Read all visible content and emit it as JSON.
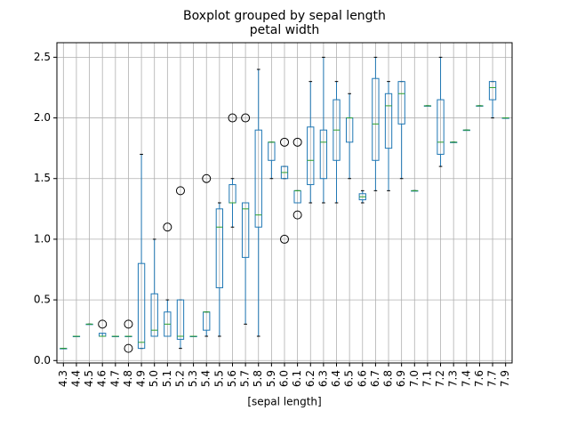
{
  "chart_data": {
    "type": "boxplot",
    "title": "Boxplot grouped by sepal length",
    "subtitle": "petal width",
    "xlabel": "[sepal length]",
    "categories": [
      "4.3",
      "4.4",
      "4.5",
      "4.6",
      "4.7",
      "4.8",
      "4.9",
      "5.0",
      "5.1",
      "5.2",
      "5.3",
      "5.4",
      "5.5",
      "5.6",
      "5.7",
      "5.8",
      "5.9",
      "6.0",
      "6.1",
      "6.2",
      "6.3",
      "6.4",
      "6.5",
      "6.6",
      "6.7",
      "6.8",
      "6.9",
      "7.0",
      "7.1",
      "7.2",
      "7.3",
      "7.4",
      "7.6",
      "7.7",
      "7.9"
    ],
    "whislo": [
      0.1,
      0.2,
      0.3,
      0.2,
      0.2,
      0.2,
      0.1,
      0.2,
      0.2,
      0.1,
      0.2,
      0.2,
      0.2,
      1.1,
      0.3,
      0.2,
      1.5,
      1.5,
      1.3,
      1.3,
      1.3,
      1.3,
      1.5,
      1.3,
      1.4,
      1.4,
      1.5,
      1.4,
      2.1,
      1.6,
      1.8,
      1.9,
      2.1,
      2.0,
      2.0
    ],
    "q1": [
      0.1,
      0.2,
      0.3,
      0.2,
      0.2,
      0.2,
      0.1,
      0.2,
      0.2,
      0.175,
      0.2,
      0.25,
      0.6,
      1.3,
      0.85,
      1.1,
      1.65,
      1.5,
      1.3,
      1.45,
      1.5,
      1.65,
      1.8,
      1.325,
      1.65,
      1.75,
      1.95,
      1.4,
      2.1,
      1.7,
      1.8,
      1.9,
      2.1,
      2.15,
      2.0
    ],
    "median": [
      0.1,
      0.2,
      0.3,
      0.2,
      0.2,
      0.2,
      0.15,
      0.25,
      0.3,
      0.2,
      0.2,
      0.4,
      1.1,
      1.3,
      1.25,
      1.2,
      1.8,
      1.55,
      1.4,
      1.65,
      1.8,
      1.9,
      2.0,
      1.35,
      1.95,
      2.1,
      2.2,
      1.4,
      2.1,
      1.8,
      1.8,
      1.9,
      2.1,
      2.25,
      2.0
    ],
    "q3": [
      0.1,
      0.2,
      0.3,
      0.225,
      0.2,
      0.2,
      0.8,
      0.55,
      0.4,
      0.5,
      0.2,
      0.4,
      1.25,
      1.45,
      1.3,
      1.9,
      1.8,
      1.6,
      1.4,
      1.925,
      1.9,
      2.15,
      2.0,
      1.375,
      2.325,
      2.2,
      2.3,
      1.4,
      2.1,
      2.15,
      1.8,
      1.9,
      2.1,
      2.3,
      2.0
    ],
    "whishi": [
      0.1,
      0.2,
      0.3,
      0.2,
      0.2,
      0.2,
      1.7,
      1.0,
      0.5,
      0.5,
      0.2,
      0.4,
      1.3,
      1.5,
      1.3,
      2.4,
      1.8,
      1.6,
      1.4,
      2.3,
      2.5,
      2.3,
      2.2,
      1.4,
      2.5,
      2.3,
      2.3,
      1.4,
      2.1,
      2.5,
      1.8,
      1.9,
      2.1,
      2.3,
      2.0
    ],
    "fliers": [
      [],
      [],
      [],
      [
        0.3
      ],
      [],
      [
        0.1,
        0.3
      ],
      [],
      [],
      [
        1.1
      ],
      [
        1.4
      ],
      [],
      [
        1.5
      ],
      [],
      [
        2.0
      ],
      [
        2.0
      ],
      [],
      [],
      [
        1.0,
        1.8
      ],
      [
        1.2,
        1.8
      ],
      [],
      [],
      [],
      [],
      [],
      [],
      [],
      [],
      [],
      [],
      [],
      [],
      [],
      [],
      [],
      []
    ],
    "color": "#1f77b4",
    "median_color": "#2ca02c",
    "ylim": [
      -0.02,
      2.62
    ],
    "yticks": [
      {
        "value": 0,
        "label": "0.0"
      },
      0.5,
      {
        "value": 1,
        "label": "1.0"
      },
      1.5,
      {
        "value": 2,
        "label": "2.0"
      },
      2.5
    ],
    "grid": true
  }
}
